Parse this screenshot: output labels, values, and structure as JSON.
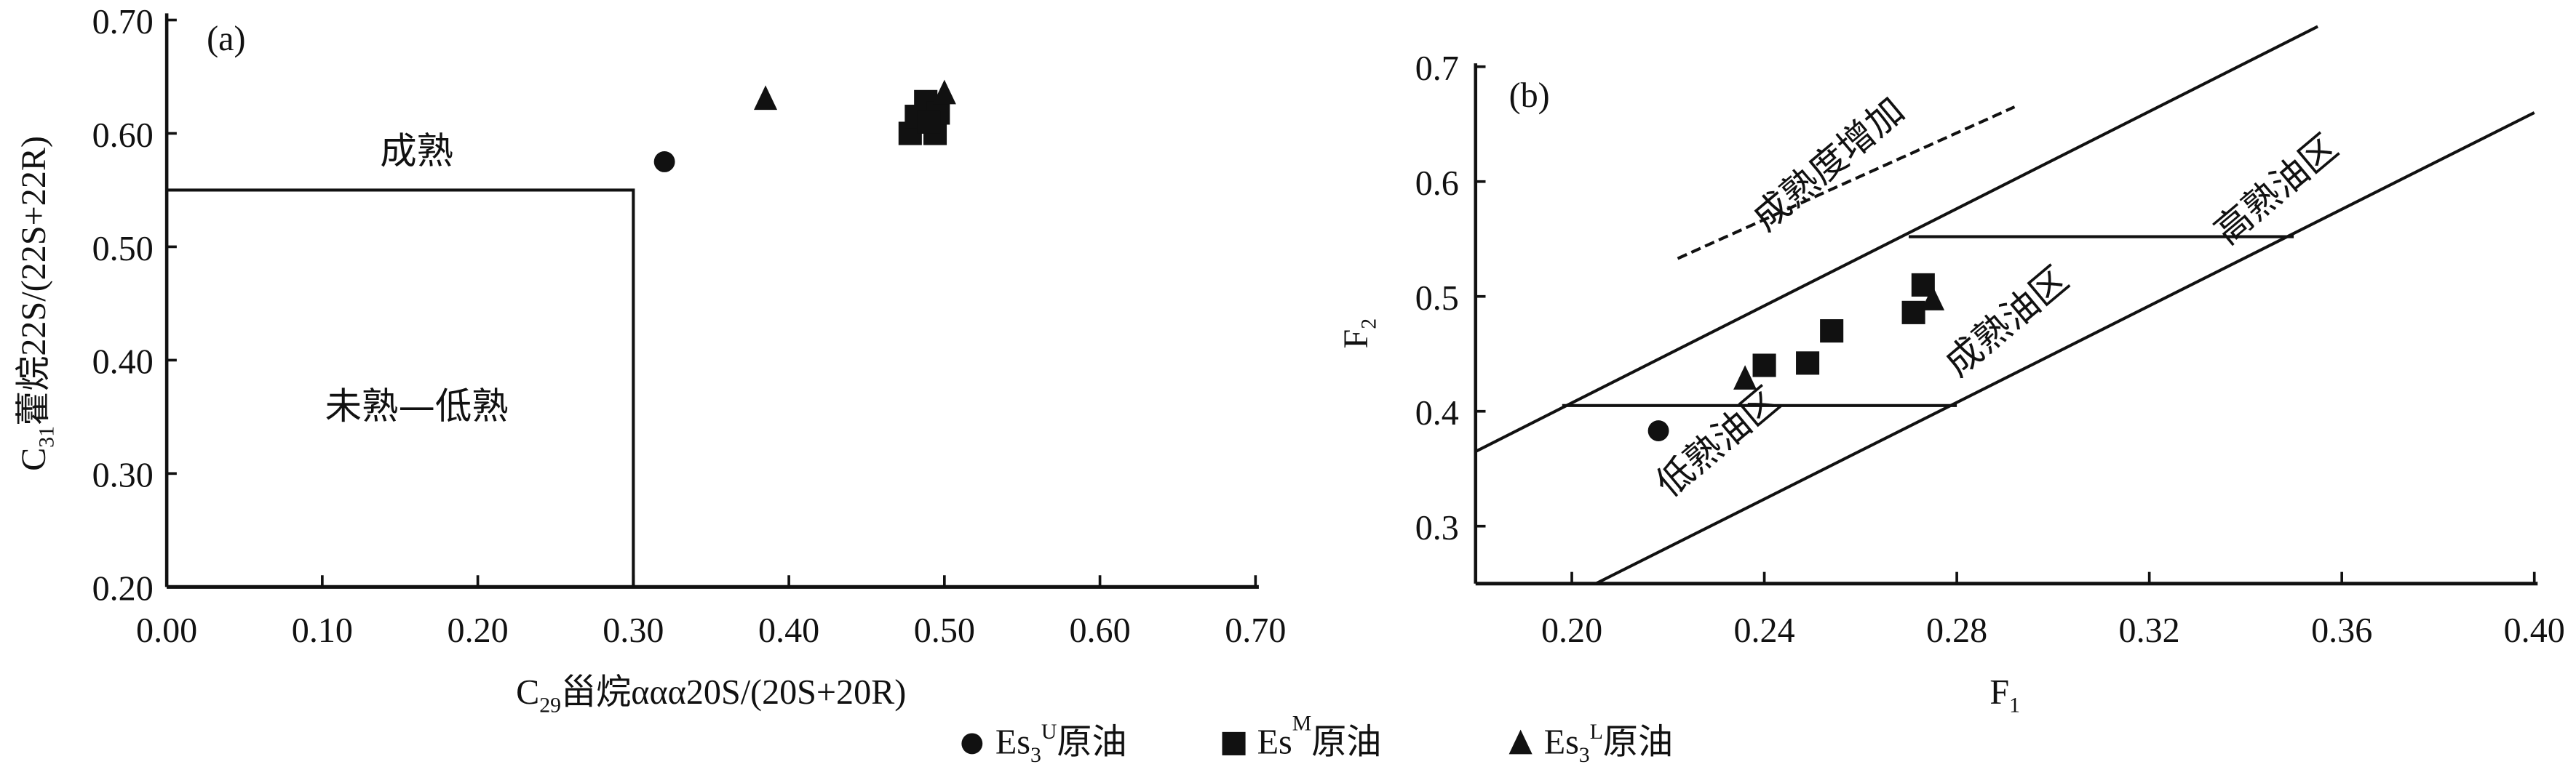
{
  "chart_data": [
    {
      "type": "scatter",
      "panel": "(a)",
      "xlabel_main": "C",
      "xlabel_sub": "29",
      "xlabel_rest": "甾烷ααα20S/(20S+20R)",
      "ylabel_main": "C",
      "ylabel_sub": "31",
      "ylabel_rest": "藿烷22S/(22S+22R)",
      "xlim": [
        0,
        0.7
      ],
      "ylim": [
        0.2,
        0.7
      ],
      "xticks": [
        "0.00",
        "0.10",
        "0.20",
        "0.30",
        "0.40",
        "0.50",
        "0.60",
        "0.70"
      ],
      "yticks": [
        "0.20",
        "0.30",
        "0.40",
        "0.50",
        "0.60",
        "0.70"
      ],
      "regions": [
        {
          "label": "成熟",
          "x": 0.15,
          "y": 0.585
        },
        {
          "label": "未熟—低熟",
          "x": 0.15,
          "y": 0.36
        }
      ],
      "boundary": {
        "x_max": 0.3,
        "y_max": 0.55
      },
      "series": [
        {
          "name": "Es3U",
          "marker": "circle",
          "points": [
            [
              0.32,
              0.575
            ]
          ]
        },
        {
          "name": "EsM",
          "marker": "square",
          "points": [
            [
              0.478,
              0.6
            ],
            [
              0.482,
              0.615
            ],
            [
              0.488,
              0.628
            ],
            [
              0.494,
              0.6
            ],
            [
              0.496,
              0.618
            ],
            [
              0.49,
              0.61
            ]
          ]
        },
        {
          "name": "Es3L",
          "marker": "triangle",
          "points": [
            [
              0.385,
              0.63
            ],
            [
              0.5,
              0.635
            ]
          ]
        }
      ]
    },
    {
      "type": "scatter",
      "panel": "(b)",
      "xlabel_main": "F",
      "xlabel_sub": "1",
      "ylabel_main": "F",
      "ylabel_sub": "2",
      "xlim": [
        0.18,
        0.4
      ],
      "ylim": [
        0.25,
        0.7
      ],
      "xticks": [
        "0.20",
        "0.24",
        "0.28",
        "0.32",
        "0.36",
        "0.40"
      ],
      "yticks": [
        "0.3",
        "0.4",
        "0.5",
        "0.6",
        "0.7"
      ],
      "regions": [
        {
          "label": "低熟油区",
          "x": 0.232,
          "y": 0.365
        },
        {
          "label": "成熟油区",
          "x": 0.292,
          "y": 0.47
        },
        {
          "label": "高熟油区",
          "x": 0.348,
          "y": 0.585
        },
        {
          "label": "成熟度增加",
          "x": 0.255,
          "y": 0.607
        }
      ],
      "lines": {
        "upper": [
          [
            0.18,
            0.365
          ],
          [
            0.355,
            0.735
          ]
        ],
        "lower": [
          [
            0.205,
            0.25
          ],
          [
            0.4,
            0.66
          ]
        ],
        "low_boundary": [
          [
            0.198,
            0.405
          ],
          [
            0.28,
            0.405
          ]
        ],
        "high_boundary": [
          [
            0.27,
            0.552
          ],
          [
            0.35,
            0.552
          ]
        ],
        "trend_dashed": [
          [
            0.222,
            0.533
          ],
          [
            0.292,
            0.665
          ]
        ]
      },
      "series": [
        {
          "name": "Es3U",
          "marker": "circle",
          "points": [
            [
              0.218,
              0.383
            ]
          ]
        },
        {
          "name": "EsM",
          "marker": "square",
          "points": [
            [
              0.24,
              0.44
            ],
            [
              0.249,
              0.442
            ],
            [
              0.254,
              0.47
            ],
            [
              0.271,
              0.486
            ],
            [
              0.273,
              0.51
            ]
          ]
        },
        {
          "name": "Es3L",
          "marker": "triangle",
          "points": [
            [
              0.236,
              0.428
            ],
            [
              0.275,
              0.497
            ]
          ]
        }
      ]
    }
  ],
  "legend": [
    {
      "marker": "circle",
      "main": "Es",
      "sub": "3",
      "sup": "U",
      "suffix": "原油"
    },
    {
      "marker": "square",
      "main": "Es",
      "sub": "",
      "sup": "M",
      "suffix": "原油"
    },
    {
      "marker": "triangle",
      "main": "Es",
      "sub": "3",
      "sup": "L",
      "suffix": "原油"
    }
  ]
}
